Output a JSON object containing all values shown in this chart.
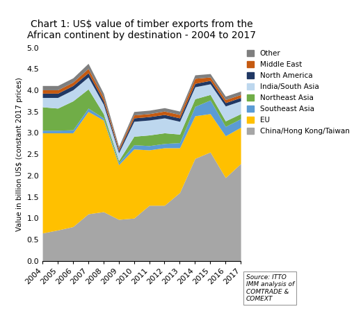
{
  "title": "Chart 1: US$ value of timber exports from the\nAfrican continent by destination - 2004 to 2017",
  "ylabel": "Value in billion US$ (constant 2017 prices)",
  "years": [
    2004,
    2005,
    2006,
    2007,
    2008,
    2009,
    2010,
    2011,
    2012,
    2013,
    2014,
    2015,
    2016,
    2017
  ],
  "series_order": [
    "China/Hong Kong/Taiwan",
    "EU",
    "Southeast Asia",
    "Northeast Asia",
    "India/South Asia",
    "North America",
    "Middle East",
    "Other"
  ],
  "series": {
    "China/Hong Kong/Taiwan": [
      0.65,
      0.72,
      0.8,
      1.1,
      1.15,
      0.97,
      1.0,
      1.3,
      1.3,
      1.6,
      2.4,
      2.55,
      1.95,
      2.28
    ],
    "EU": [
      2.35,
      2.28,
      2.2,
      2.4,
      2.15,
      1.28,
      1.62,
      1.3,
      1.35,
      1.05,
      1.0,
      0.9,
      0.98,
      0.85
    ],
    "Southeast Asia": [
      0.06,
      0.06,
      0.07,
      0.08,
      0.05,
      0.05,
      0.1,
      0.1,
      0.1,
      0.12,
      0.22,
      0.32,
      0.22,
      0.2
    ],
    "Northeast Asia": [
      0.55,
      0.52,
      0.68,
      0.45,
      0.1,
      0.05,
      0.2,
      0.25,
      0.25,
      0.2,
      0.18,
      0.13,
      0.13,
      0.12
    ],
    "India/South Asia": [
      0.22,
      0.25,
      0.26,
      0.28,
      0.22,
      0.18,
      0.35,
      0.35,
      0.35,
      0.3,
      0.28,
      0.25,
      0.35,
      0.3
    ],
    "North America": [
      0.1,
      0.1,
      0.1,
      0.1,
      0.08,
      0.05,
      0.08,
      0.08,
      0.08,
      0.08,
      0.08,
      0.08,
      0.08,
      0.08
    ],
    "Middle East": [
      0.08,
      0.08,
      0.08,
      0.1,
      0.08,
      0.05,
      0.07,
      0.07,
      0.08,
      0.08,
      0.12,
      0.08,
      0.07,
      0.07
    ],
    "Other": [
      0.1,
      0.1,
      0.1,
      0.12,
      0.1,
      0.05,
      0.08,
      0.08,
      0.08,
      0.08,
      0.08,
      0.08,
      0.08,
      0.08
    ]
  },
  "colors": {
    "China/Hong Kong/Taiwan": "#A6A6A6",
    "EU": "#FFC000",
    "Southeast Asia": "#5B9BD5",
    "Northeast Asia": "#70AD47",
    "India/South Asia": "#BDD7EE",
    "North America": "#203864",
    "Middle East": "#C55A11",
    "Other": "#7F7F7F"
  },
  "ylim": [
    0,
    5.0
  ],
  "yticks": [
    0.0,
    0.5,
    1.0,
    1.5,
    2.0,
    2.5,
    3.0,
    3.5,
    4.0,
    4.5,
    5.0
  ],
  "source_text": "Source: ITTO\nIMM analysis of\nCOMTRADE &\nCOMEXT",
  "figsize": [
    5.09,
    4.58
  ],
  "dpi": 100
}
